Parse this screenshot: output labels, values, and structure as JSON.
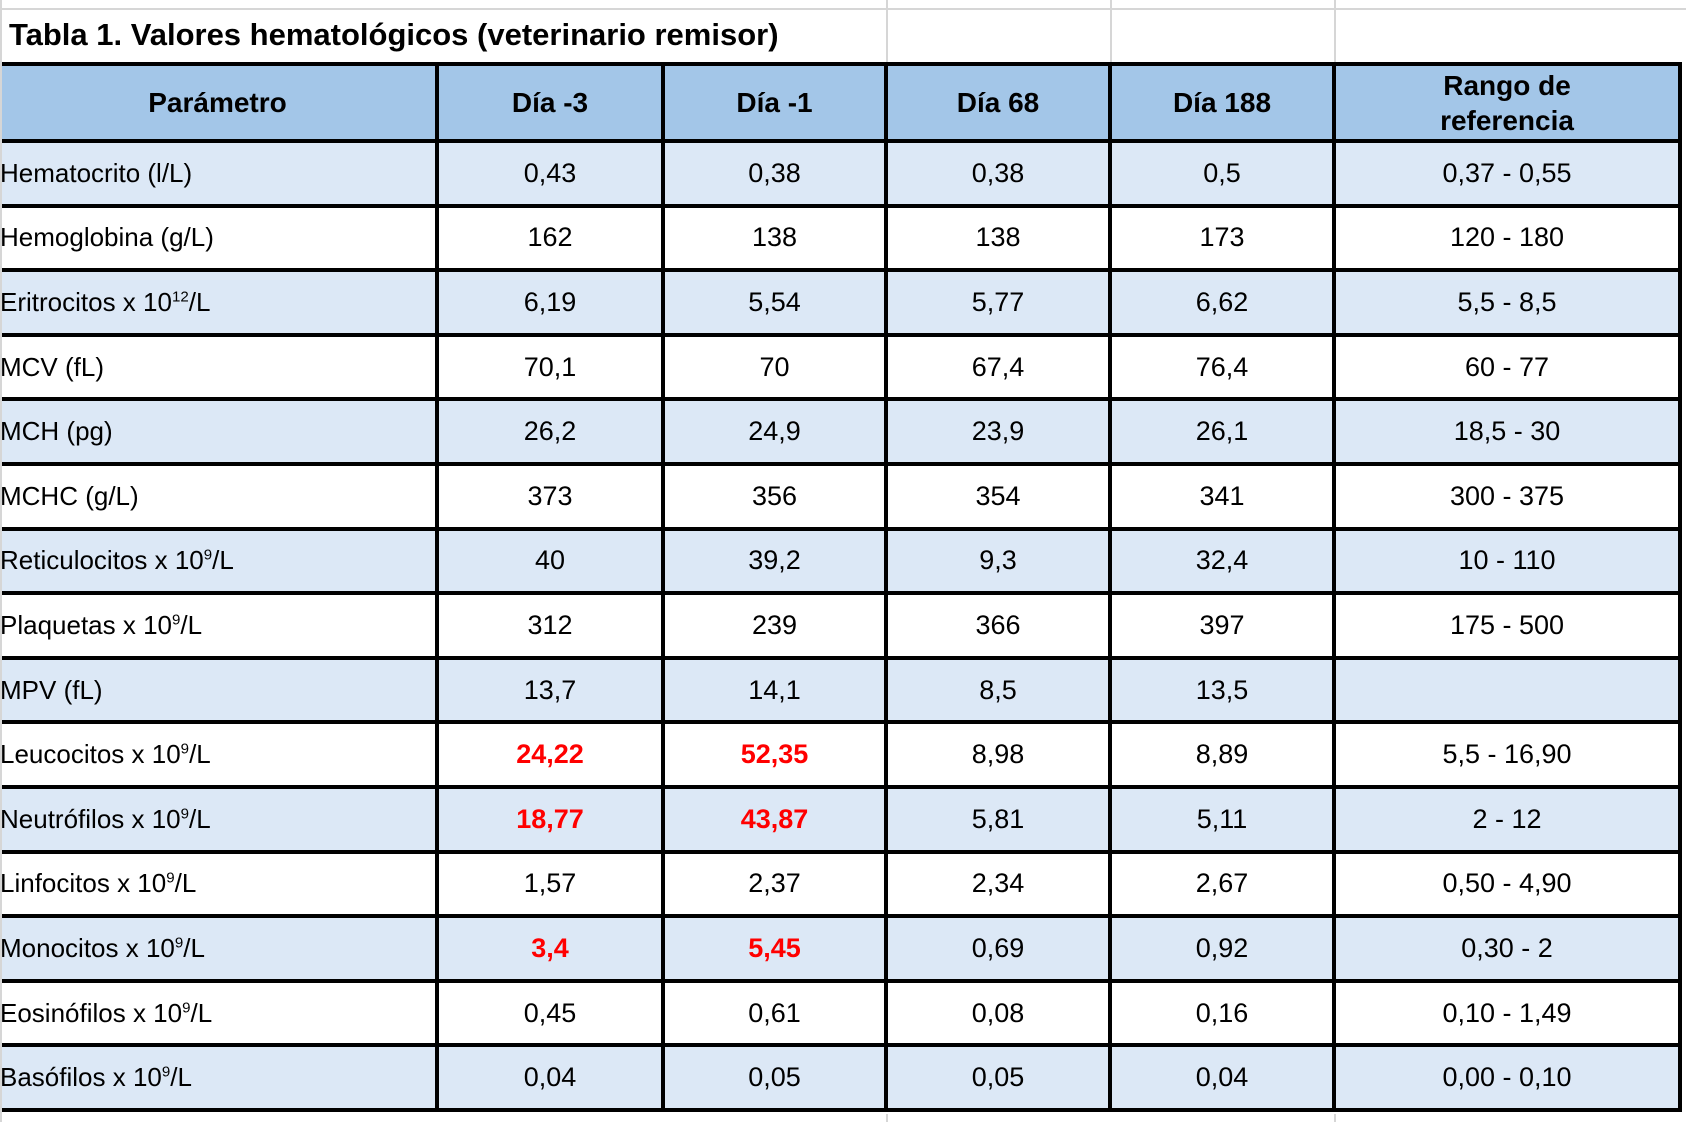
{
  "title": "Tabla 1. Valores hematológicos (veterinario remisor)",
  "table": {
    "columns": [
      {
        "label": "Parámetro"
      },
      {
        "label": "Día -3"
      },
      {
        "label": "Día -1"
      },
      {
        "label": "Día 68"
      },
      {
        "label": "Día 188"
      },
      {
        "label": "Rango de referencia"
      }
    ],
    "rows": [
      {
        "parameter": "Hematocrito (l/L)",
        "sup": "",
        "suffix": "",
        "values": [
          "0,43",
          "0,38",
          "0,38",
          "0,5"
        ],
        "reference": "0,37 - 0,55",
        "highlighted_cols": []
      },
      {
        "parameter": "Hemoglobina (g/L)",
        "sup": "",
        "suffix": "",
        "values": [
          "162",
          "138",
          "138",
          "173"
        ],
        "reference": "120 - 180",
        "highlighted_cols": []
      },
      {
        "parameter": "Eritrocitos x 10",
        "sup": "12",
        "suffix": "/L",
        "values": [
          "6,19",
          "5,54",
          "5,77",
          "6,62"
        ],
        "reference": "5,5 - 8,5",
        "highlighted_cols": []
      },
      {
        "parameter": "MCV (fL)",
        "sup": "",
        "suffix": "",
        "values": [
          "70,1",
          "70",
          "67,4",
          "76,4"
        ],
        "reference": "60 - 77",
        "highlighted_cols": []
      },
      {
        "parameter": "MCH (pg)",
        "sup": "",
        "suffix": "",
        "values": [
          "26,2",
          "24,9",
          "23,9",
          "26,1"
        ],
        "reference": "18,5 - 30",
        "highlighted_cols": []
      },
      {
        "parameter": "MCHC (g/L)",
        "sup": "",
        "suffix": "",
        "values": [
          "373",
          "356",
          "354",
          "341"
        ],
        "reference": "300 - 375",
        "highlighted_cols": []
      },
      {
        "parameter": "Reticulocitos x 10",
        "sup": "9",
        "suffix": "/L",
        "values": [
          "40",
          "39,2",
          "9,3",
          "32,4"
        ],
        "reference": "10 - 110",
        "highlighted_cols": []
      },
      {
        "parameter": "Plaquetas x 10",
        "sup": "9",
        "suffix": "/L",
        "values": [
          "312",
          "239",
          "366",
          "397"
        ],
        "reference": "175 - 500",
        "highlighted_cols": []
      },
      {
        "parameter": "MPV (fL)",
        "sup": "",
        "suffix": "",
        "values": [
          "13,7",
          "14,1",
          "8,5",
          "13,5"
        ],
        "reference": "",
        "highlighted_cols": []
      },
      {
        "parameter": "Leucocitos x 10",
        "sup": "9",
        "suffix": "/L",
        "values": [
          "24,22",
          "52,35",
          "8,98",
          "8,89"
        ],
        "reference": "5,5 - 16,90",
        "highlighted_cols": [
          0,
          1
        ]
      },
      {
        "parameter": "Neutrófilos x 10",
        "sup": "9",
        "suffix": "/L",
        "values": [
          "18,77",
          "43,87",
          "5,81",
          "5,11"
        ],
        "reference": "2 - 12",
        "highlighted_cols": [
          0,
          1
        ]
      },
      {
        "parameter": "Linfocitos x 10",
        "sup": "9",
        "suffix": "/L",
        "values": [
          "1,57",
          "2,37",
          "2,34",
          "2,67"
        ],
        "reference": "0,50 - 4,90",
        "highlighted_cols": []
      },
      {
        "parameter": "Monocitos x 10",
        "sup": "9",
        "suffix": "/L",
        "values": [
          "3,4",
          "5,45",
          "0,69",
          "0,92"
        ],
        "reference": "0,30 - 2",
        "highlighted_cols": [
          0,
          1
        ]
      },
      {
        "parameter": "Eosinófilos x 10",
        "sup": "9",
        "suffix": "/L",
        "values": [
          "0,45",
          "0,61",
          "0,08",
          "0,16"
        ],
        "reference": "0,10 - 1,49",
        "highlighted_cols": []
      },
      {
        "parameter": "Basófilos x 10",
        "sup": "9",
        "suffix": "/L",
        "values": [
          "0,04",
          "0,05",
          "0,05",
          "0,04"
        ],
        "reference": "0,00 - 0,10",
        "highlighted_cols": []
      }
    ]
  },
  "colors": {
    "header_bg": "#a3c6e8",
    "row_alt_bg": "#dce8f6",
    "row_bg": "#ffffff",
    "highlight_value": "#ff0000",
    "table_border": "#000000",
    "gridline": "#d6d6d6"
  }
}
